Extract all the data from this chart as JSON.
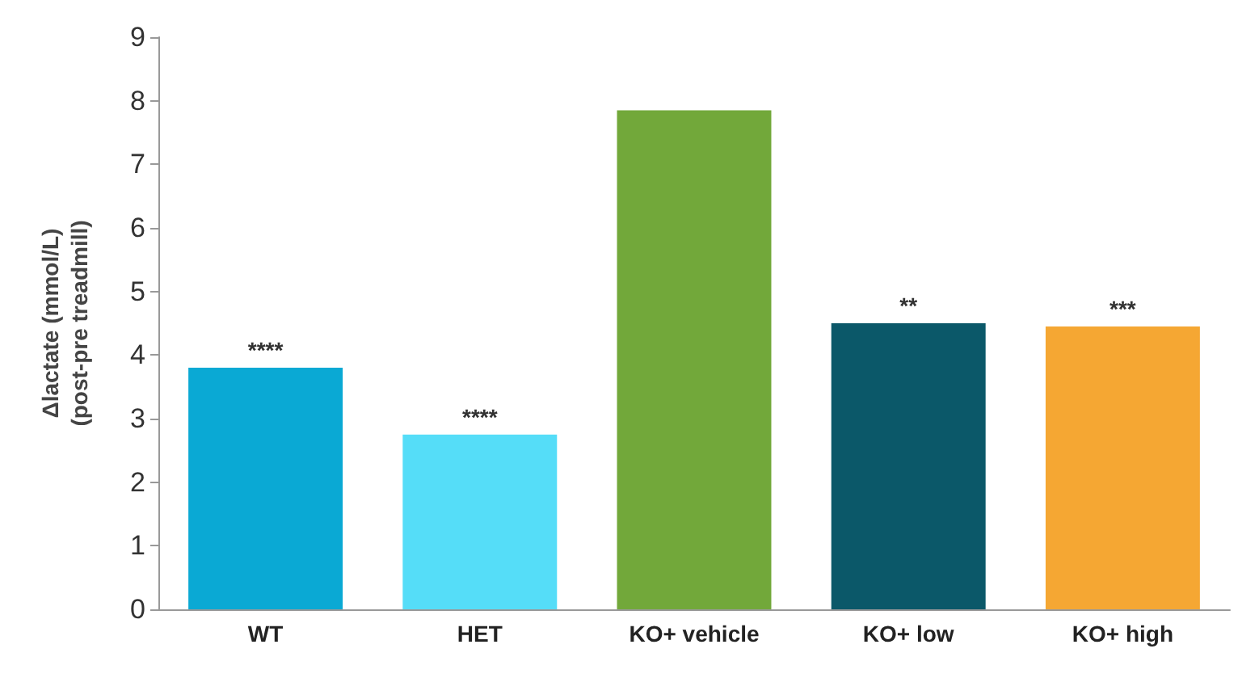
{
  "chart_data": {
    "type": "bar",
    "ylabel": "Δlactate (mmol/L)\n(post-pre treadmill)",
    "categories": [
      "WT",
      "HET",
      "KO+ vehicle",
      "KO+ low",
      "KO+ high"
    ],
    "values": [
      3.8,
      2.75,
      7.85,
      4.5,
      4.45
    ],
    "colors": [
      "#0aa9d4",
      "#55ddf8",
      "#72a83a",
      "#0b5869",
      "#f5a733"
    ],
    "ylim": [
      0,
      9
    ],
    "yticks": [
      0,
      1,
      2,
      3,
      4,
      5,
      6,
      7,
      8,
      9
    ],
    "grid": false,
    "annotations": [
      {
        "text": "****",
        "x": "WT",
        "y": 3.8
      },
      {
        "text": "****",
        "x": "HET",
        "y": 2.75
      },
      {
        "text": "**",
        "x": "KO+ low",
        "y": 4.5
      },
      {
        "text": "***",
        "x": "KO+ high",
        "y": 4.45
      }
    ]
  }
}
